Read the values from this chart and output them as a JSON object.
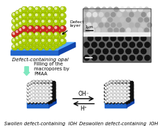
{
  "top_left_label": "Defect-containing opal",
  "defect_label": "Defect\nlayer",
  "arrow_label": "Filling of the\nmacropores by\nPMAA",
  "bottom_left_label": "Swollen defect-containing  IOH",
  "bottom_right_label": "Deswollen defect-containing  IOH",
  "oh_label": "OH⁻",
  "h_label": "H⁺",
  "bg_color": "#ffffff",
  "cyan_color": "#80e8c0",
  "yellow_green": "#aacc00",
  "red_defect": "#cc2222",
  "base_top": "#55aaff",
  "base_front": "#2266cc",
  "base_side": "#1144aa"
}
